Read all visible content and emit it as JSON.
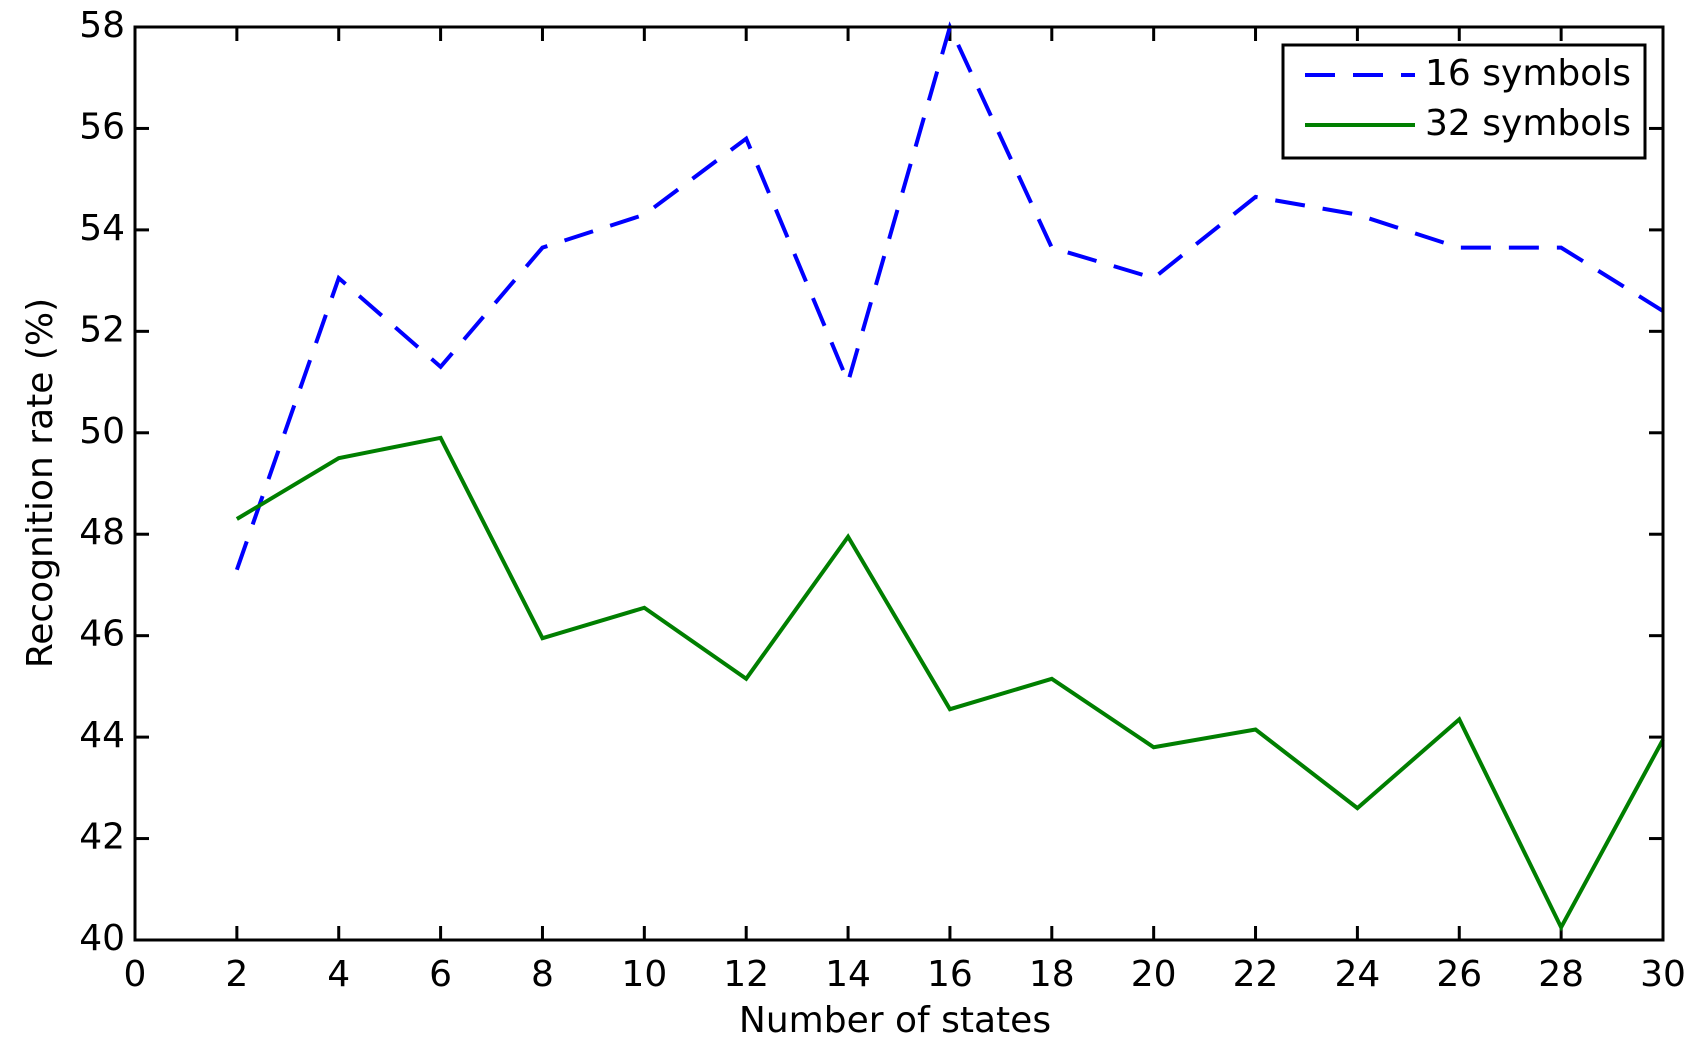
{
  "chart_data": {
    "type": "line",
    "x_label": "Number of states",
    "y_label": "Recognition rate (%)",
    "x": [
      2,
      4,
      6,
      8,
      10,
      12,
      14,
      16,
      18,
      20,
      22,
      24,
      26,
      28,
      30
    ],
    "series": [
      {
        "name": "16 symbols",
        "color": "#0000ff",
        "dash": true,
        "values": [
          47.3,
          53.05,
          51.3,
          53.65,
          54.3,
          55.8,
          51.0,
          58.0,
          53.65,
          53.05,
          54.65,
          54.3,
          53.65,
          53.65,
          52.4
        ]
      },
      {
        "name": "32 symbols",
        "color": "#007f00",
        "dash": false,
        "values": [
          48.3,
          49.5,
          49.9,
          45.95,
          46.55,
          45.15,
          47.95,
          44.55,
          45.15,
          43.8,
          44.15,
          42.6,
          44.35,
          40.25,
          43.95
        ]
      }
    ],
    "xlim": [
      0,
      30
    ],
    "xticks": [
      0,
      2,
      4,
      6,
      8,
      10,
      12,
      14,
      16,
      18,
      20,
      22,
      24,
      26,
      28,
      30
    ],
    "ylim": [
      40,
      58
    ],
    "yticks": [
      40,
      42,
      44,
      46,
      48,
      50,
      52,
      54,
      56,
      58
    ],
    "grid": false,
    "legend": "upper right"
  }
}
